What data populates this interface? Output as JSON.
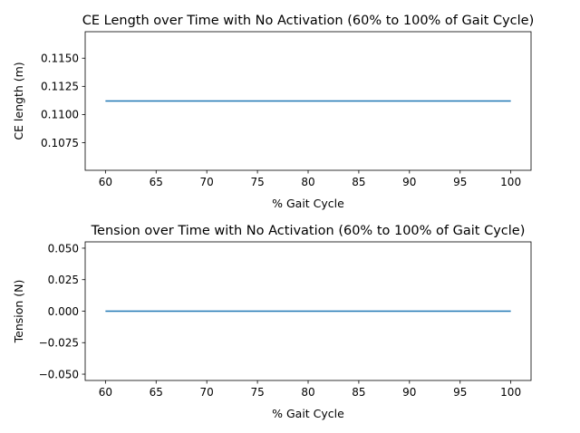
{
  "chart_data": [
    {
      "type": "line",
      "title": "CE Length over Time with No Activation (60% to 100% of Gait Cycle)",
      "xlabel": "% Gait Cycle",
      "ylabel": "CE length (m)",
      "xlim": [
        58,
        102
      ],
      "ylim": [
        0.10505,
        0.11735
      ],
      "xticks": [
        60,
        65,
        70,
        75,
        80,
        85,
        90,
        95,
        100
      ],
      "yticks": [
        0.1075,
        0.11,
        0.1125,
        0.115
      ],
      "ytick_labels": [
        "0.1075",
        "0.1100",
        "0.1125",
        "0.1150"
      ],
      "series": [
        {
          "x": [
            60,
            100
          ],
          "y": [
            0.1112,
            0.1112
          ],
          "color": "#1f77b4"
        }
      ],
      "grid": false
    },
    {
      "type": "line",
      "title": "Tension over Time with No Activation (60% to 100% of Gait Cycle)",
      "xlabel": "% Gait Cycle",
      "ylabel": "Tension (N)",
      "xlim": [
        58,
        102
      ],
      "ylim": [
        -0.055,
        0.055
      ],
      "xticks": [
        60,
        65,
        70,
        75,
        80,
        85,
        90,
        95,
        100
      ],
      "yticks": [
        -0.05,
        -0.025,
        0.0,
        0.025,
        0.05
      ],
      "ytick_labels": [
        "−0.050",
        "−0.025",
        "0.000",
        "0.025",
        "0.050"
      ],
      "series": [
        {
          "x": [
            60,
            100
          ],
          "y": [
            0,
            0
          ],
          "color": "#1f77b4"
        }
      ],
      "grid": false
    }
  ]
}
